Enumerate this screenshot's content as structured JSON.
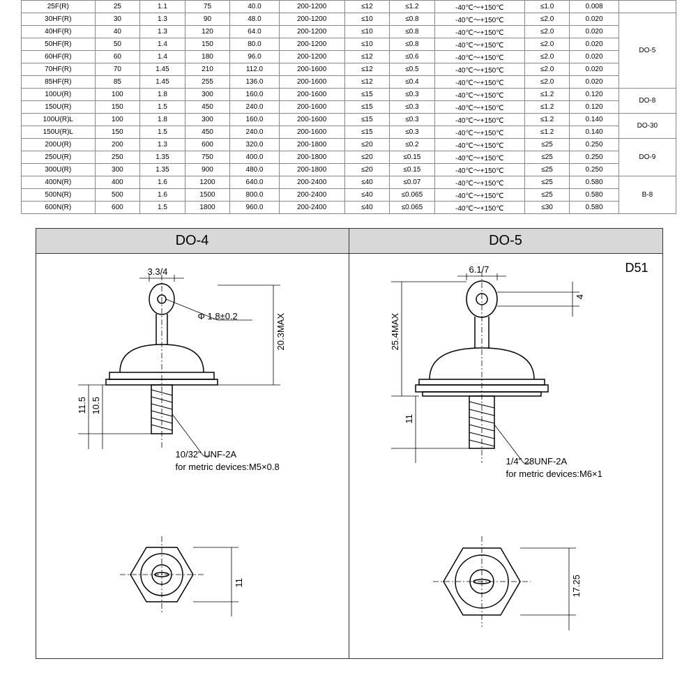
{
  "table": {
    "rows": [
      {
        "model": "25F(R)",
        "c2": "25",
        "c3": "1.1",
        "c4": "75",
        "c5": "40.0",
        "c6": "200-1200",
        "c7": "≤12",
        "c8": "≤1.2",
        "c9": "-40℃～+150℃",
        "c10": "≤1.0",
        "c11": "0.008"
      },
      {
        "model": "30HF(R)",
        "c2": "30",
        "c3": "1.3",
        "c4": "90",
        "c5": "48.0",
        "c6": "200-1200",
        "c7": "≤10",
        "c8": "≤0.8",
        "c9": "-40℃～+150℃",
        "c10": "≤2.0",
        "c11": "0.020"
      },
      {
        "model": "40HF(R)",
        "c2": "40",
        "c3": "1.3",
        "c4": "120",
        "c5": "64.0",
        "c6": "200-1200",
        "c7": "≤10",
        "c8": "≤0.8",
        "c9": "-40℃～+150℃",
        "c10": "≤2.0",
        "c11": "0.020"
      },
      {
        "model": "50HF(R)",
        "c2": "50",
        "c3": "1.4",
        "c4": "150",
        "c5": "80.0",
        "c6": "200-1200",
        "c7": "≤10",
        "c8": "≤0.8",
        "c9": "-40℃～+150℃",
        "c10": "≤2.0",
        "c11": "0.020"
      },
      {
        "model": "60HF(R)",
        "c2": "60",
        "c3": "1.4",
        "c4": "180",
        "c5": "96.0",
        "c6": "200-1200",
        "c7": "≤12",
        "c8": "≤0.6",
        "c9": "-40℃～+150℃",
        "c10": "≤2.0",
        "c11": "0.020"
      },
      {
        "model": "70HF(R)",
        "c2": "70",
        "c3": "1.45",
        "c4": "210",
        "c5": "112.0",
        "c6": "200-1600",
        "c7": "≤12",
        "c8": "≤0.5",
        "c9": "-40℃～+150℃",
        "c10": "≤2.0",
        "c11": "0.020"
      },
      {
        "model": "85HF(R)",
        "c2": "85",
        "c3": "1.45",
        "c4": "255",
        "c5": "136.0",
        "c6": "200-1600",
        "c7": "≤12",
        "c8": "≤0.4",
        "c9": "-40℃～+150℃",
        "c10": "≤2.0",
        "c11": "0.020"
      },
      {
        "model": "100U(R)",
        "c2": "100",
        "c3": "1.8",
        "c4": "300",
        "c5": "160.0",
        "c6": "200-1600",
        "c7": "≤15",
        "c8": "≤0.3",
        "c9": "-40℃～+150℃",
        "c10": "≤1.2",
        "c11": "0.120"
      },
      {
        "model": "150U(R)",
        "c2": "150",
        "c3": "1.5",
        "c4": "450",
        "c5": "240.0",
        "c6": "200-1600",
        "c7": "≤15",
        "c8": "≤0.3",
        "c9": "-40℃～+150℃",
        "c10": "≤1.2",
        "c11": "0.120"
      },
      {
        "model": "100U(R)L",
        "c2": "100",
        "c3": "1.8",
        "c4": "300",
        "c5": "160.0",
        "c6": "200-1600",
        "c7": "≤15",
        "c8": "≤0.3",
        "c9": "-40℃～+150℃",
        "c10": "≤1.2",
        "c11": "0.140"
      },
      {
        "model": "150U(R)L",
        "c2": "150",
        "c3": "1.5",
        "c4": "450",
        "c5": "240.0",
        "c6": "200-1600",
        "c7": "≤15",
        "c8": "≤0.3",
        "c9": "-40℃～+150℃",
        "c10": "≤1.2",
        "c11": "0.140"
      },
      {
        "model": "200U(R)",
        "c2": "200",
        "c3": "1.3",
        "c4": "600",
        "c5": "320.0",
        "c6": "200-1800",
        "c7": "≤20",
        "c8": "≤0.2",
        "c9": "-40℃～+150℃",
        "c10": "≤25",
        "c11": "0.250"
      },
      {
        "model": "250U(R)",
        "c2": "250",
        "c3": "1.35",
        "c4": "750",
        "c5": "400.0",
        "c6": "200-1800",
        "c7": "≤20",
        "c8": "≤0.15",
        "c9": "-40℃～+150℃",
        "c10": "≤25",
        "c11": "0.250"
      },
      {
        "model": "300U(R)",
        "c2": "300",
        "c3": "1.35",
        "c4": "900",
        "c5": "480.0",
        "c6": "200-1800",
        "c7": "≤20",
        "c8": "≤0.15",
        "c9": "-40℃～+150℃",
        "c10": "≤25",
        "c11": "0.250"
      },
      {
        "model": "400N(R)",
        "c2": "400",
        "c3": "1.6",
        "c4": "1200",
        "c5": "640.0",
        "c6": "200-2400",
        "c7": "≤40",
        "c8": "≤0.07",
        "c9": "-40℃～+150℃",
        "c10": "≤25",
        "c11": "0.580"
      },
      {
        "model": "500N(R)",
        "c2": "500",
        "c3": "1.6",
        "c4": "1500",
        "c5": "800.0",
        "c6": "200-2400",
        "c7": "≤40",
        "c8": "≤0.065",
        "c9": "-40℃～+150℃",
        "c10": "≤25",
        "c11": "0.580"
      },
      {
        "model": "600N(R)",
        "c2": "600",
        "c3": "1.5",
        "c4": "1800",
        "c5": "960.0",
        "c6": "200-2400",
        "c7": "≤40",
        "c8": "≤0.065",
        "c9": "-40℃～+150℃",
        "c10": "≤30",
        "c11": "0.580"
      }
    ],
    "packages": [
      {
        "label": "DO-5",
        "start": 1,
        "span": 6
      },
      {
        "label": "DO-8",
        "start": 7,
        "span": 2
      },
      {
        "label": "DO-30",
        "start": 9,
        "span": 2
      },
      {
        "label": "DO-9",
        "start": 11,
        "span": 3
      },
      {
        "label": "B-8",
        "start": 14,
        "span": 3
      }
    ],
    "col_widths": [
      "90",
      "55",
      "55",
      "55",
      "60",
      "80",
      "55",
      "55",
      "110",
      "55",
      "60",
      "70"
    ]
  },
  "diagrams": {
    "left": {
      "title": "DO-4",
      "top_width": "3.3/4",
      "hole_dia": "Φ 1.8±0.2",
      "height": "20.3MAX",
      "stud_h1": "11.5",
      "stud_h2": "10.5",
      "thread": "10/32\" UNF-2A",
      "metric": "for metric devices:M5×0.8",
      "hex_af": "11"
    },
    "right": {
      "title": "DO-5",
      "corner": "D51",
      "top_width": "6.1/7",
      "top_thk": "4",
      "height": "25.4MAX",
      "stud_h": "11",
      "thread": "1/4\" 28UNF-2A",
      "metric": "for metric devices:M6×1",
      "hex_af": "17.25"
    }
  },
  "colors": {
    "border": "#888888",
    "header_bg": "#d8d8d8",
    "line": "#000000"
  }
}
